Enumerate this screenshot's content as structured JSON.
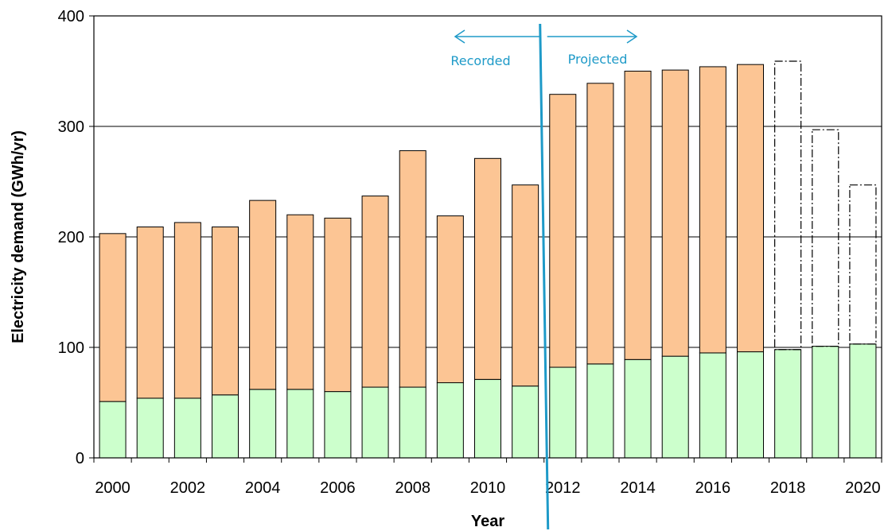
{
  "chart_data": {
    "type": "bar",
    "stacked": true,
    "xlabel": "Year",
    "ylabel": "Electricity demand  (GWh/yr)",
    "ylim": [
      0,
      400
    ],
    "yticks": [
      0,
      100,
      200,
      300,
      400
    ],
    "x_tick_labels": [
      "2000",
      "2002",
      "2004",
      "2006",
      "2008",
      "2010",
      "2012",
      "2014",
      "2016",
      "2018",
      "2020"
    ],
    "grid": "horizontal",
    "categories": [
      2000,
      2001,
      2002,
      2003,
      2004,
      2005,
      2006,
      2007,
      2008,
      2009,
      2010,
      2011,
      2012,
      2013,
      2014,
      2015,
      2016,
      2017,
      2018,
      2019,
      2020
    ],
    "series": [
      {
        "color": "#ccffcc",
        "values": [
          51,
          54,
          54,
          57,
          62,
          62,
          60,
          64,
          64,
          68,
          71,
          65,
          82,
          85,
          89,
          92,
          95,
          96,
          98,
          101,
          103
        ]
      },
      {
        "color": "#fcc594",
        "values": [
          152,
          155,
          159,
          152,
          171,
          158,
          157,
          173,
          214,
          151,
          200,
          182,
          247,
          254,
          261,
          259,
          259,
          260,
          null,
          null,
          null
        ]
      }
    ],
    "outline_totals": [
      {
        "x": 2018,
        "total": 359
      },
      {
        "x": 2019,
        "total": 297
      },
      {
        "x": 2020,
        "total": 247
      }
    ],
    "annotations": {
      "divider_x": 2011.5,
      "left_label": "Recorded",
      "right_label": "Projected",
      "color": "#1e9ac8"
    }
  }
}
